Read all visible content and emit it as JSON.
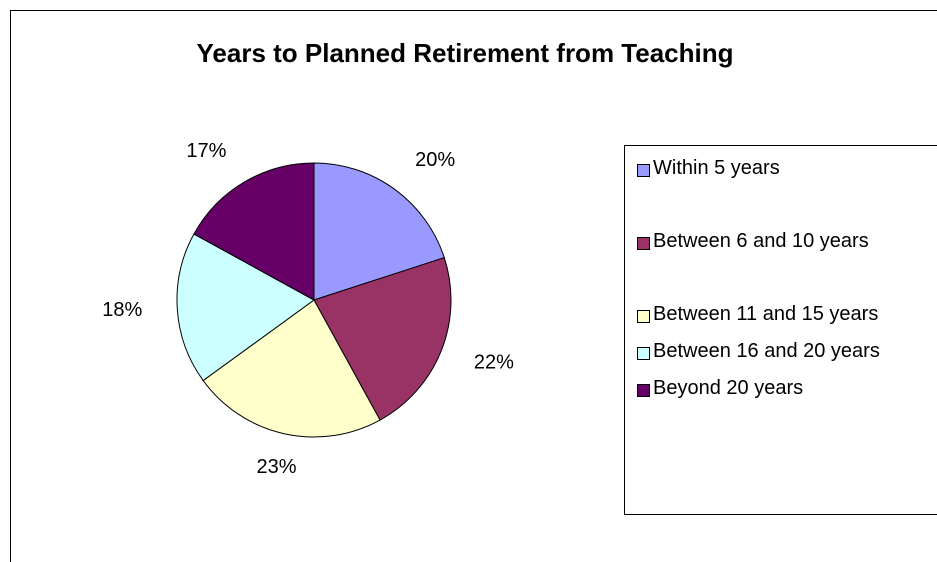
{
  "chart_data": {
    "type": "pie",
    "title": "Years to Planned Retirement from Teaching",
    "categories": [
      "Within 5 years",
      "Between 6 and 10 years",
      "Between 11 and 15 years",
      "Between 16 and 20 years",
      "Beyond 20 years"
    ],
    "values": [
      20,
      22,
      23,
      18,
      17
    ],
    "value_labels": [
      "20%",
      "22%",
      "23%",
      "18%",
      "17%"
    ],
    "colors": [
      "#9999ff",
      "#993366",
      "#ffffcc",
      "#ccffff",
      "#660066"
    ],
    "legend": "right"
  }
}
